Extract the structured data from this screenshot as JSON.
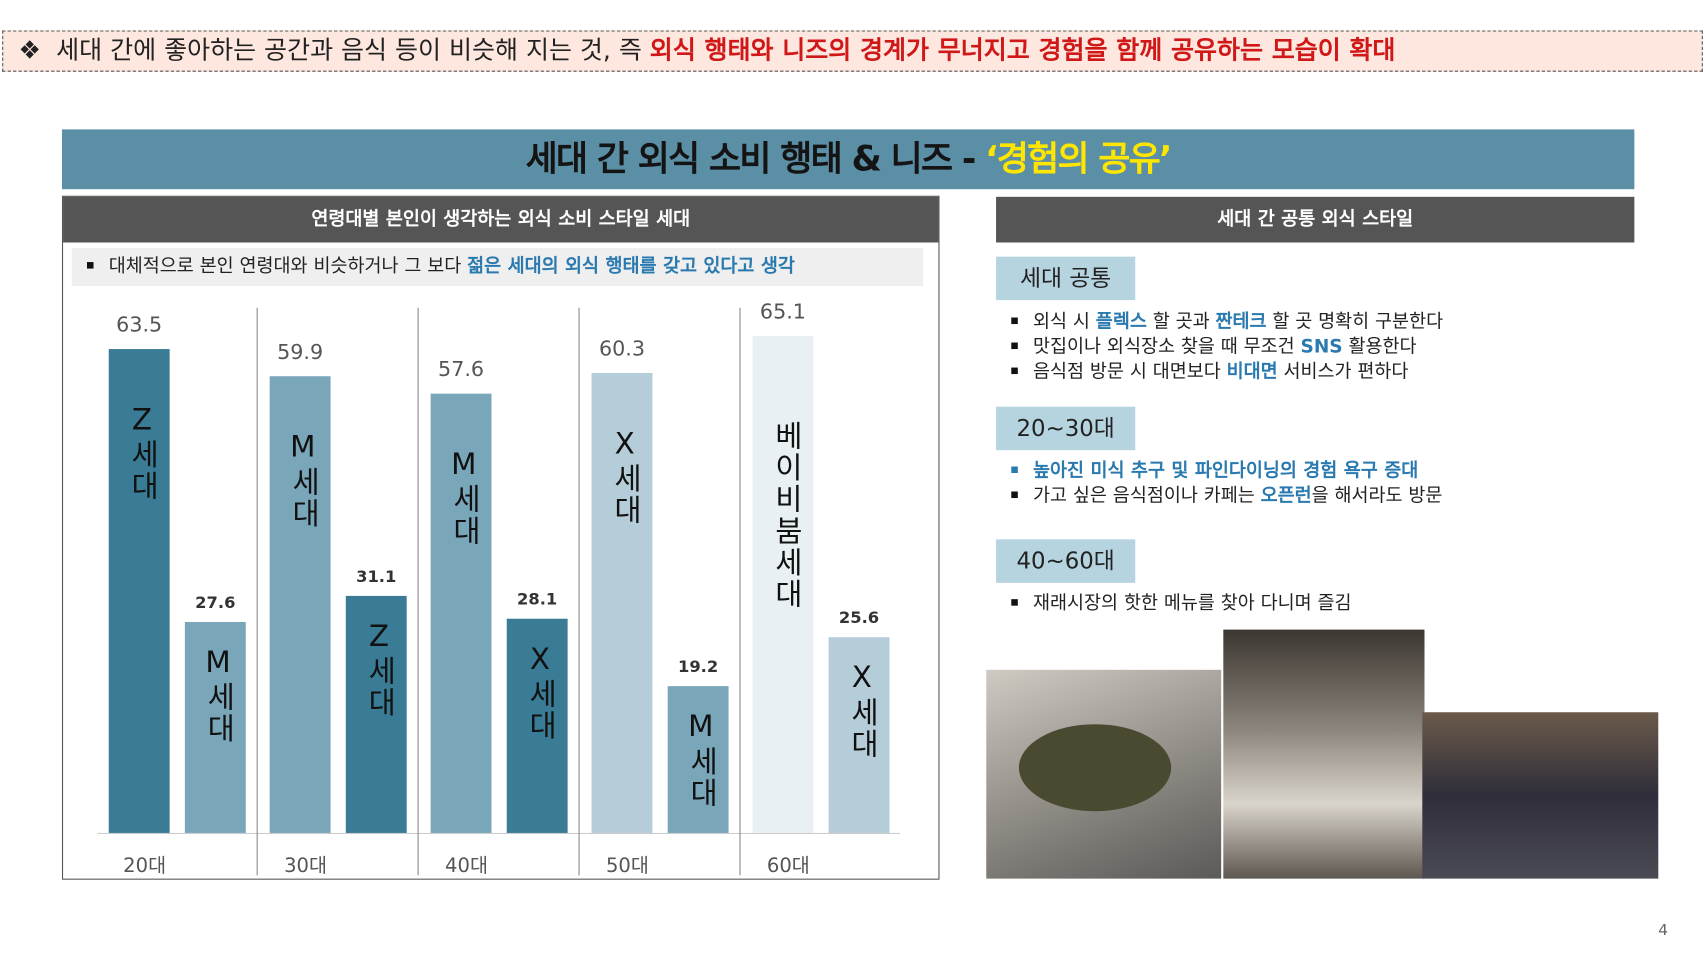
{
  "banner": {
    "symbol": "❖",
    "parts": [
      {
        "t": "세대 간에 좋아하는 공간과 음식 등이 비슷해 지는 것, 즉 "
      },
      {
        "t": "외식 행태와 니즈의 경계가 무너지고 경험을 함께 공유하는 모습이 확대",
        "em": true
      }
    ]
  },
  "title": {
    "parts": [
      {
        "t": "세대 간 외식 소비 행태 & 니즈 - "
      },
      {
        "t": "‘경험의 공유’",
        "em": true
      }
    ]
  },
  "left_panel": {
    "header": "연령대별 본인이 생각하는 외식 소비 스타일 세대",
    "note": [
      {
        "t": "대체적으로 본인 연령대와 비슷하거나 그 보다 "
      },
      {
        "t": "젊은 세대의 외식 행태를 갖고 있다고 생각",
        "em": true
      }
    ]
  },
  "chart_data": {
    "type": "bar",
    "categories": [
      "20대",
      "30대",
      "40대",
      "50대",
      "60대"
    ],
    "series": [
      {
        "values": [
          63.5,
          59.9,
          57.6,
          60.3,
          65.1
        ],
        "labels": [
          "Z세대",
          "M세대",
          "M세대",
          "X세대",
          "베이비붐세대"
        ],
        "colors": [
          "#3a7b95",
          "#7aa6ba",
          "#7aa6ba",
          "#b5cdd9",
          "#e8f0f3"
        ]
      },
      {
        "values": [
          27.6,
          31.1,
          28.1,
          19.2,
          25.6
        ],
        "labels": [
          "M세대",
          "Z세대",
          "X세대",
          "M세대",
          "X세대"
        ],
        "colors": [
          "#7aa6ba",
          "#3a7b95",
          "#3a7b95",
          "#7aa6ba",
          "#b5cdd9"
        ]
      }
    ],
    "ylim": [
      0,
      70
    ]
  },
  "right_panel": {
    "header": "세대 간 공통 외식 스타일",
    "sections": [
      {
        "heading": "세대 공통",
        "bullets": [
          [
            {
              "t": "외식 시 "
            },
            {
              "t": "플렉스",
              "em": true
            },
            {
              "t": " 할 곳과 "
            },
            {
              "t": "짠테크",
              "em": true
            },
            {
              "t": " 할 곳 명확히 구분한다"
            }
          ],
          [
            {
              "t": "맛집이나 외식장소 찾을 때 무조건 "
            },
            {
              "t": "SNS",
              "em": true
            },
            {
              "t": " 활용한다"
            }
          ],
          [
            {
              "t": "음식점 방문 시 대면보다 "
            },
            {
              "t": "비대면",
              "em": true
            },
            {
              "t": " 서비스가 편하다"
            }
          ]
        ]
      },
      {
        "heading": "20~30대",
        "bullets": [
          [
            {
              "t": "높아진 미식 추구 및 파인다이닝의 경험 욕구 증대",
              "em": true
            }
          ],
          [
            {
              "t": "가고 싶은 음식점이나 카페는 "
            },
            {
              "t": "오픈런",
              "em": true
            },
            {
              "t": "을 해서라도 방문"
            }
          ]
        ]
      },
      {
        "heading": "40~60대",
        "bullets": [
          [
            {
              "t": "재래시장의 핫한 메뉴를 찾아 다니며 즐김"
            }
          ]
        ]
      }
    ]
  },
  "page_number": "4"
}
